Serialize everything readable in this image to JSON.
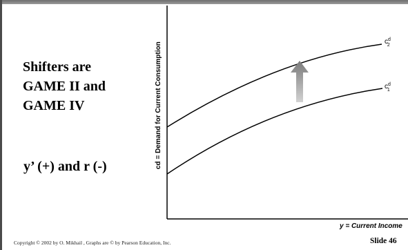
{
  "slide": {
    "shifters_text": "Shifters are\nGAME II and\nGAME IV",
    "effects_text": "y’ (+) and r (-)",
    "copyright": "Copyright © 2002 by O. Mikhail , Graphs are © by Pearson Education, Inc.",
    "slide_number": "Slide 46"
  },
  "diagram": {
    "y_axis_label": "cd = Demand for Current Consumption",
    "x_axis_label": "y = Current Income",
    "curve_upper_label": {
      "base": "c",
      "sup": "d",
      "sub": "2"
    },
    "curve_lower_label": {
      "base": "c",
      "sup": "d",
      "sub": "1"
    },
    "shift_direction": "up"
  }
}
